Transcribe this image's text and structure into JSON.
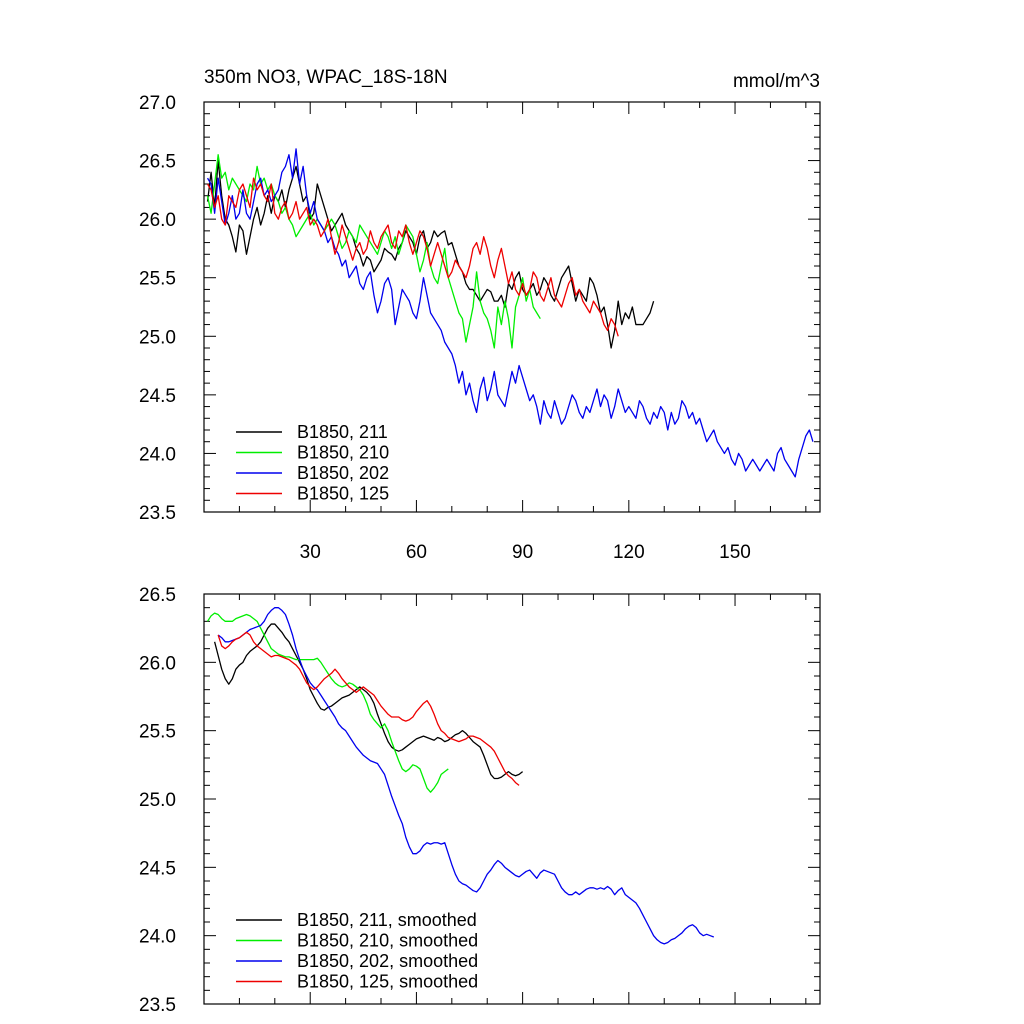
{
  "chart_data": [
    {
      "type": "line",
      "title": "350m NO3, WPAC_18S-18N",
      "units": "mmol/m^3",
      "xlim": [
        0,
        174
      ],
      "ylim": [
        23.5,
        27.0
      ],
      "xticks": [
        30,
        60,
        90,
        120,
        150
      ],
      "xtick_labels": [
        "30",
        "60",
        "90",
        "120",
        "150"
      ],
      "yticks": [
        23.5,
        24.0,
        24.5,
        25.0,
        25.5,
        26.0,
        26.5,
        27.0
      ],
      "ytick_labels": [
        "23.5",
        "24.0",
        "24.5",
        "25.0",
        "25.5",
        "26.0",
        "26.5",
        "27.0"
      ],
      "legend_position": "bottom-left",
      "series": [
        {
          "name": "B1850, 211",
          "color": "#000000",
          "x_start": 1,
          "x_step": 1,
          "values": [
            26.15,
            26.4,
            26.1,
            26.5,
            26.2,
            26.0,
            25.95,
            25.85,
            25.72,
            25.95,
            25.9,
            25.7,
            25.85,
            26.0,
            26.1,
            25.95,
            26.05,
            26.2,
            26.05,
            26.2,
            26.15,
            26.25,
            26.1,
            26.25,
            26.35,
            26.45,
            26.3,
            26.15,
            26.2,
            26.0,
            26.05,
            26.3,
            26.2,
            26.1,
            26.0,
            25.9,
            25.95,
            26.0,
            26.05,
            25.95,
            25.9,
            25.85,
            25.75,
            25.7,
            25.6,
            25.68,
            25.65,
            25.55,
            25.6,
            25.65,
            25.75,
            25.72,
            25.7,
            25.65,
            25.75,
            25.8,
            25.9,
            25.85,
            25.8,
            25.7,
            25.85,
            25.9,
            25.75,
            25.8,
            25.9,
            25.85,
            25.88,
            25.9,
            25.78,
            25.8,
            25.7,
            25.6,
            25.55,
            25.45,
            25.4,
            25.4,
            25.35,
            25.3,
            25.35,
            25.4,
            25.38,
            25.3,
            25.3,
            25.35,
            25.25,
            25.45,
            25.4,
            25.5,
            25.55,
            25.4,
            25.35,
            25.4,
            25.45,
            25.35,
            25.4,
            25.5,
            25.45,
            25.35,
            25.3,
            25.4,
            25.5,
            25.55,
            25.6,
            25.45,
            25.3,
            25.4,
            25.35,
            25.3,
            25.5,
            25.45,
            25.35,
            25.2,
            25.25,
            25.1,
            24.9,
            25.05,
            25.3,
            25.1,
            25.2,
            25.15,
            25.25,
            25.1,
            25.1,
            25.1,
            25.15,
            25.2,
            25.3
          ]
        },
        {
          "name": "B1850, 210",
          "color": "#00ee00",
          "x_start": 1,
          "x_step": 1,
          "values": [
            26.2,
            26.05,
            26.3,
            26.55,
            26.35,
            26.4,
            26.25,
            26.35,
            26.3,
            26.25,
            26.2,
            26.15,
            26.3,
            26.25,
            26.45,
            26.3,
            26.35,
            26.25,
            26.3,
            26.2,
            26.15,
            26.05,
            26.1,
            26.0,
            25.95,
            25.85,
            25.9,
            25.95,
            26.0,
            26.05,
            25.95,
            26.0,
            25.95,
            25.9,
            25.95,
            26.0,
            25.95,
            25.85,
            25.75,
            25.8,
            25.9,
            25.85,
            25.8,
            25.95,
            25.9,
            25.85,
            25.8,
            25.75,
            25.7,
            25.8,
            25.9,
            25.85,
            25.75,
            25.85,
            25.7,
            25.8,
            25.95,
            25.9,
            25.85,
            25.7,
            25.55,
            25.65,
            25.8,
            25.6,
            25.5,
            25.45,
            25.6,
            25.75,
            25.5,
            25.4,
            25.3,
            25.2,
            25.15,
            24.95,
            25.1,
            25.25,
            25.55,
            25.3,
            25.2,
            25.15,
            25.05,
            24.9,
            25.25,
            25.1,
            25.3,
            25.15,
            24.9,
            25.25,
            25.35,
            25.5,
            25.3,
            25.4,
            25.25,
            25.2,
            25.15
          ]
        },
        {
          "name": "B1850, 202",
          "color": "#0000ee",
          "x_start": 1,
          "x_step": 1,
          "values": [
            26.35,
            26.3,
            26.05,
            26.35,
            26.15,
            25.95,
            26.05,
            26.2,
            26.0,
            26.05,
            26.25,
            26.05,
            26.0,
            26.15,
            26.3,
            26.35,
            26.2,
            26.25,
            26.15,
            26.2,
            26.25,
            26.4,
            26.45,
            26.55,
            26.35,
            26.6,
            26.3,
            26.45,
            26.2,
            26.05,
            26.15,
            26.0,
            25.95,
            25.9,
            25.8,
            25.85,
            25.75,
            25.7,
            25.6,
            25.65,
            25.5,
            25.55,
            25.6,
            25.45,
            25.4,
            25.5,
            25.55,
            25.35,
            25.2,
            25.3,
            25.45,
            25.5,
            25.4,
            25.1,
            25.25,
            25.4,
            25.35,
            25.3,
            25.2,
            25.15,
            25.3,
            25.5,
            25.35,
            25.2,
            25.15,
            25.1,
            25.05,
            24.95,
            24.9,
            24.85,
            24.75,
            24.6,
            24.7,
            24.5,
            24.6,
            24.45,
            24.35,
            24.55,
            24.65,
            24.45,
            24.55,
            24.7,
            24.5,
            24.45,
            24.4,
            24.55,
            24.7,
            24.6,
            24.75,
            24.65,
            24.55,
            24.45,
            24.5,
            24.4,
            24.25,
            24.45,
            24.35,
            24.3,
            24.45,
            24.35,
            24.25,
            24.3,
            24.4,
            24.5,
            24.45,
            24.35,
            24.3,
            24.4,
            24.35,
            24.45,
            24.55,
            24.4,
            24.5,
            24.45,
            24.3,
            24.4,
            24.55,
            24.45,
            24.35,
            24.4,
            24.35,
            24.3,
            24.45,
            24.4,
            24.3,
            24.25,
            24.35,
            24.3,
            24.4,
            24.35,
            24.2,
            24.35,
            24.25,
            24.3,
            24.45,
            24.4,
            24.3,
            24.35,
            24.25,
            24.3,
            24.2,
            24.1,
            24.15,
            24.2,
            24.1,
            24.05,
            24.0,
            24.05,
            23.95,
            23.9,
            24.0,
            23.95,
            23.85,
            23.9,
            23.95,
            23.9,
            23.85,
            23.9,
            23.95,
            23.9,
            23.85,
            24.0,
            24.05,
            23.95,
            23.9,
            23.85,
            23.8,
            23.95,
            24.05,
            24.15,
            24.2,
            24.1
          ]
        },
        {
          "name": "B1850, 125",
          "color": "#ee0000",
          "x_start": 1,
          "x_step": 1,
          "values": [
            26.3,
            26.25,
            26.1,
            26.2,
            26.0,
            25.95,
            26.2,
            26.15,
            26.1,
            26.25,
            26.3,
            26.2,
            26.1,
            26.35,
            26.25,
            26.3,
            26.2,
            26.15,
            26.3,
            26.05,
            26.0,
            26.1,
            26.15,
            26.0,
            26.05,
            26.15,
            26.0,
            26.05,
            26.1,
            25.95,
            26.0,
            25.95,
            25.85,
            25.9,
            26.0,
            25.85,
            25.7,
            25.8,
            25.95,
            25.85,
            25.75,
            25.65,
            25.75,
            25.8,
            25.7,
            25.75,
            25.9,
            25.8,
            25.75,
            25.85,
            25.9,
            25.95,
            25.8,
            25.75,
            25.9,
            25.85,
            25.95,
            25.8,
            25.7,
            25.8,
            25.9,
            25.85,
            25.75,
            25.6,
            25.7,
            25.8,
            25.7,
            25.6,
            25.5,
            25.55,
            25.65,
            25.6,
            25.55,
            25.5,
            25.6,
            25.75,
            25.8,
            25.7,
            25.85,
            25.75,
            25.6,
            25.5,
            25.65,
            25.75,
            25.6,
            25.45,
            25.55,
            25.4,
            25.35,
            25.45,
            25.35,
            25.4,
            25.55,
            25.5,
            25.35,
            25.3,
            25.4,
            25.5,
            25.35,
            25.3,
            25.25,
            25.35,
            25.45,
            25.5,
            25.35,
            25.4,
            25.3,
            25.25,
            25.2,
            25.3,
            25.25,
            25.2,
            25.1,
            25.05,
            25.15,
            25.1,
            25.0
          ]
        }
      ]
    },
    {
      "type": "line",
      "title": "",
      "xlim": [
        0,
        174
      ],
      "ylim": [
        23.5,
        26.5
      ],
      "yticks": [
        23.5,
        24.0,
        24.5,
        25.0,
        25.5,
        26.0,
        26.5
      ],
      "ytick_labels": [
        "23.5",
        "24.0",
        "24.5",
        "25.0",
        "25.5",
        "26.0",
        "26.5"
      ],
      "legend_position": "bottom-left",
      "series": [
        {
          "name": "B1850, 211, smoothed",
          "color": "#000000",
          "x_start": 3,
          "x_step": 1,
          "values": [
            26.15,
            26.05,
            25.95,
            25.88,
            25.84,
            25.88,
            25.95,
            25.98,
            26.0,
            26.05,
            26.08,
            26.1,
            26.12,
            26.15,
            26.2,
            26.25,
            26.28,
            26.28,
            26.25,
            26.22,
            26.18,
            26.15,
            26.1,
            26.05,
            26.0,
            25.95,
            25.88,
            25.8,
            25.75,
            25.7,
            25.66,
            25.65,
            25.67,
            25.68,
            25.7,
            25.72,
            25.74,
            25.75,
            25.76,
            25.78,
            25.8,
            25.82,
            25.8,
            25.78,
            25.75,
            25.7,
            25.62,
            25.55,
            25.48,
            25.42,
            25.38,
            25.36,
            25.35,
            25.36,
            25.38,
            25.4,
            25.42,
            25.44,
            25.45,
            25.46,
            25.45,
            25.44,
            25.43,
            25.45,
            25.44,
            25.42,
            25.43,
            25.45,
            25.47,
            25.48,
            25.5,
            25.48,
            25.45,
            25.42,
            25.4,
            25.38,
            25.32,
            25.25,
            25.18,
            25.15,
            25.15,
            25.16,
            25.18,
            25.2,
            25.18,
            25.17,
            25.18,
            25.2
          ]
        },
        {
          "name": "B1850, 210, smoothed",
          "color": "#00ee00",
          "x_start": 1,
          "x_step": 1,
          "values": [
            26.3,
            26.34,
            26.36,
            26.35,
            26.32,
            26.3,
            26.3,
            26.3,
            26.32,
            26.33,
            26.34,
            26.35,
            26.34,
            26.32,
            26.3,
            26.25,
            26.2,
            26.15,
            26.1,
            26.08,
            26.06,
            26.05,
            26.04,
            26.04,
            26.03,
            26.02,
            26.02,
            26.02,
            26.02,
            26.02,
            26.02,
            26.03,
            26.0,
            25.96,
            25.92,
            25.88,
            25.85,
            25.83,
            25.82,
            25.83,
            25.85,
            25.84,
            25.82,
            25.8,
            25.76,
            25.7,
            25.62,
            25.58,
            25.55,
            25.52,
            25.55,
            25.5,
            25.42,
            25.35,
            25.28,
            25.22,
            25.2,
            25.22,
            25.25,
            25.24,
            25.22,
            25.15,
            25.08,
            25.05,
            25.08,
            25.12,
            25.18,
            25.2,
            25.22
          ]
        },
        {
          "name": "B1850, 202, smoothed",
          "color": "#0000ee",
          "x_start": 4,
          "x_step": 1,
          "values": [
            26.2,
            26.18,
            26.15,
            26.15,
            26.16,
            26.17,
            26.18,
            26.2,
            26.22,
            26.24,
            26.25,
            26.26,
            26.27,
            26.3,
            26.35,
            26.38,
            26.4,
            26.4,
            26.38,
            26.35,
            26.28,
            26.2,
            26.1,
            26.02,
            25.95,
            25.9,
            25.85,
            25.82,
            25.8,
            25.76,
            25.72,
            25.68,
            25.64,
            25.6,
            25.55,
            25.52,
            25.5,
            25.46,
            25.42,
            25.38,
            25.35,
            25.32,
            25.3,
            25.28,
            25.27,
            25.26,
            25.22,
            25.18,
            25.1,
            25.02,
            24.95,
            24.88,
            24.82,
            24.72,
            24.65,
            24.6,
            24.6,
            24.62,
            24.66,
            24.68,
            24.67,
            24.68,
            24.68,
            24.67,
            24.68,
            24.6,
            24.52,
            24.45,
            24.4,
            24.38,
            24.37,
            24.35,
            24.33,
            24.32,
            24.35,
            24.4,
            24.45,
            24.48,
            24.52,
            24.55,
            24.53,
            24.5,
            24.48,
            24.46,
            24.44,
            24.43,
            24.45,
            24.47,
            24.48,
            24.45,
            24.42,
            24.46,
            24.48,
            24.47,
            24.46,
            24.45,
            24.4,
            24.35,
            24.32,
            24.3,
            24.3,
            24.32,
            24.3,
            24.32,
            24.34,
            24.35,
            24.35,
            24.34,
            24.35,
            24.34,
            24.36,
            24.34,
            24.3,
            24.33,
            24.35,
            24.3,
            24.28,
            24.26,
            24.24,
            24.2,
            24.15,
            24.1,
            24.05,
            24.0,
            23.97,
            23.95,
            23.94,
            23.95,
            23.97,
            23.98,
            24.0,
            24.02,
            24.05,
            24.07,
            24.08,
            24.06,
            24.02,
            24.0,
            24.01,
            24.0,
            23.99
          ]
        },
        {
          "name": "B1850, 125, smoothed",
          "color": "#ee0000",
          "x_start": 4,
          "x_step": 1,
          "values": [
            26.2,
            26.12,
            26.1,
            26.12,
            26.15,
            26.17,
            26.18,
            26.2,
            26.22,
            26.2,
            26.15,
            26.12,
            26.1,
            26.08,
            26.06,
            26.04,
            26.05,
            26.05,
            26.04,
            26.03,
            26.02,
            26.0,
            25.98,
            25.95,
            25.9,
            25.85,
            25.82,
            25.8,
            25.82,
            25.85,
            25.88,
            25.9,
            25.92,
            25.95,
            25.92,
            25.88,
            25.85,
            25.82,
            25.8,
            25.78,
            25.8,
            25.82,
            25.8,
            25.78,
            25.76,
            25.72,
            25.68,
            25.65,
            25.62,
            25.6,
            25.6,
            25.6,
            25.58,
            25.57,
            25.58,
            25.6,
            25.64,
            25.67,
            25.7,
            25.72,
            25.68,
            25.62,
            25.55,
            25.5,
            25.48,
            25.45,
            25.44,
            25.43,
            25.42,
            25.43,
            25.44,
            25.46,
            25.46,
            25.45,
            25.44,
            25.42,
            25.4,
            25.38,
            25.35,
            25.3,
            25.25,
            25.2,
            25.17,
            25.15,
            25.12,
            25.1
          ]
        }
      ]
    }
  ]
}
